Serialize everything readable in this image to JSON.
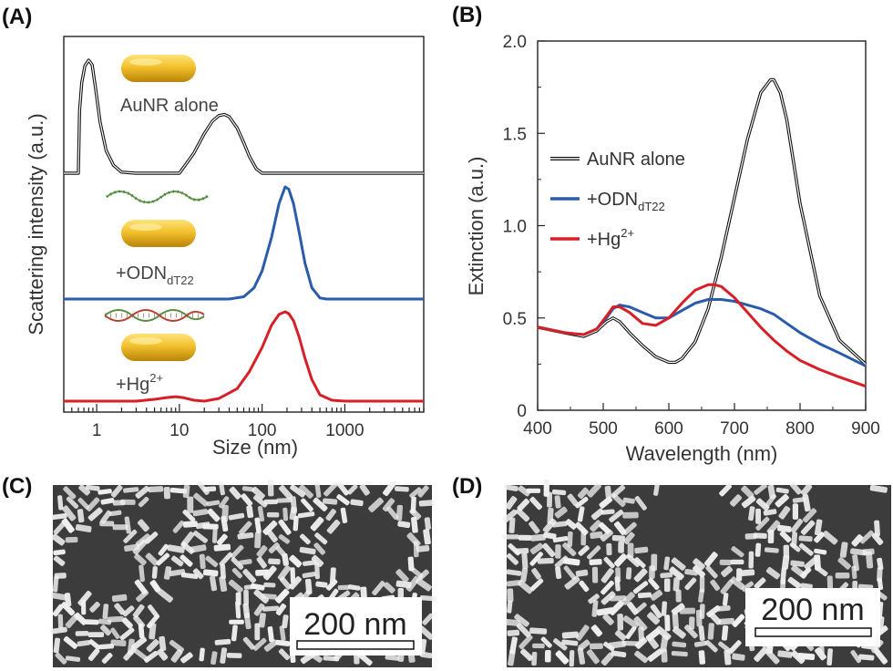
{
  "panels": {
    "a": {
      "label": "(A)"
    },
    "b": {
      "label": "(B)"
    },
    "c": {
      "label": "(C)",
      "scale_bar": "200 nm"
    },
    "d": {
      "label": "(D)",
      "scale_bar": "200 nm"
    }
  },
  "colors": {
    "alone": "#111111",
    "odn": "#2a5cab",
    "hg": "#d61f26",
    "rod": "#e8b31a",
    "tem_bg": "#3c3c3c",
    "tem_rod": "#f2f2f2"
  },
  "chart_data": [
    {
      "type": "line",
      "panel": "A",
      "xlabel": "Size (nm)",
      "ylabel": "Scattering intensity (a.u.)",
      "xscale": "log",
      "xlim": [
        0.4,
        9000
      ],
      "xticks": [
        "1",
        "10",
        "100",
        "1000"
      ],
      "xtick_values": [
        1,
        10,
        100,
        1000
      ],
      "y_tick_labels": false,
      "annotations": {
        "alone": "AuNR alone",
        "odn": "+ODN",
        "odn_sub": "dT22",
        "hg": "+Hg",
        "hg_sup": "2+"
      },
      "series": [
        {
          "key": "alone",
          "color": "#111111",
          "x": [
            0.4,
            0.55,
            0.6,
            0.62,
            0.66,
            0.72,
            0.8,
            0.88,
            0.97,
            1.1,
            1.3,
            1.6,
            2,
            3,
            5,
            10,
            15,
            20,
            25,
            30,
            35,
            40,
            50,
            60,
            70,
            85,
            100,
            9000
          ],
          "y": [
            0.0,
            0.0,
            0.0,
            0.55,
            0.8,
            0.95,
            1.0,
            0.96,
            0.75,
            0.45,
            0.2,
            0.07,
            0.01,
            0.0,
            0.0,
            0.0,
            0.18,
            0.35,
            0.46,
            0.51,
            0.52,
            0.5,
            0.4,
            0.27,
            0.15,
            0.04,
            0.0,
            0.0
          ]
        },
        {
          "key": "odn",
          "color": "#2a5cab",
          "x": [
            0.4,
            40,
            60,
            80,
            100,
            130,
            160,
            190,
            210,
            240,
            280,
            330,
            400,
            500,
            600,
            9000
          ],
          "y": [
            0.0,
            0.0,
            0.02,
            0.1,
            0.25,
            0.55,
            0.85,
            1.0,
            0.98,
            0.85,
            0.6,
            0.32,
            0.1,
            0.01,
            0.0,
            0.0
          ]
        },
        {
          "key": "hg",
          "color": "#d61f26",
          "x": [
            0.4,
            3,
            5,
            7,
            9,
            11,
            15,
            20,
            30,
            50,
            70,
            100,
            130,
            160,
            190,
            210,
            240,
            280,
            330,
            400,
            500,
            700,
            1000,
            9000
          ],
          "y": [
            0.0,
            0.0,
            0.02,
            0.04,
            0.05,
            0.04,
            0.01,
            0.0,
            0.03,
            0.14,
            0.33,
            0.6,
            0.85,
            0.97,
            1.0,
            0.98,
            0.9,
            0.72,
            0.48,
            0.24,
            0.07,
            0.01,
            0.0,
            0.0
          ]
        }
      ]
    },
    {
      "type": "line",
      "panel": "B",
      "xlabel": "Wavelength (nm)",
      "ylabel": "Extinction (a.u.)",
      "xlim": [
        400,
        900
      ],
      "ylim": [
        0,
        2.0
      ],
      "xticks": [
        400,
        500,
        600,
        700,
        800,
        900
      ],
      "yticks": [
        0,
        0.5,
        1.0,
        1.5,
        2.0
      ],
      "ytick_labels": [
        "0",
        "0.5",
        "1.0",
        "1.5",
        "2.0"
      ],
      "grid": false,
      "legend_position": "left",
      "legend": {
        "alone": "AuNR alone",
        "odn": "+ODN",
        "odn_sub": "dT22",
        "hg": "+Hg",
        "hg_sup": "2+"
      },
      "series": [
        {
          "key": "alone",
          "color": "#111111",
          "x": [
            400,
            440,
            470,
            490,
            505,
            515,
            525,
            540,
            560,
            580,
            600,
            610,
            620,
            640,
            660,
            680,
            700,
            720,
            740,
            755,
            760,
            770,
            780,
            800,
            830,
            860,
            900
          ],
          "y": [
            0.45,
            0.42,
            0.4,
            0.43,
            0.48,
            0.5,
            0.48,
            0.42,
            0.35,
            0.29,
            0.26,
            0.26,
            0.28,
            0.37,
            0.55,
            0.83,
            1.15,
            1.47,
            1.72,
            1.79,
            1.79,
            1.72,
            1.57,
            1.12,
            0.62,
            0.38,
            0.25
          ]
        },
        {
          "key": "odn",
          "color": "#2a5cab",
          "x": [
            400,
            440,
            470,
            490,
            505,
            515,
            525,
            540,
            560,
            580,
            600,
            620,
            640,
            660,
            680,
            700,
            720,
            740,
            760,
            780,
            800,
            830,
            860,
            900
          ],
          "y": [
            0.45,
            0.42,
            0.41,
            0.44,
            0.5,
            0.55,
            0.57,
            0.56,
            0.53,
            0.5,
            0.5,
            0.54,
            0.58,
            0.6,
            0.6,
            0.59,
            0.57,
            0.55,
            0.52,
            0.47,
            0.42,
            0.36,
            0.31,
            0.24
          ]
        },
        {
          "key": "hg",
          "color": "#d61f26",
          "x": [
            400,
            440,
            470,
            490,
            505,
            515,
            525,
            540,
            560,
            580,
            600,
            620,
            640,
            660,
            670,
            680,
            700,
            720,
            740,
            760,
            780,
            800,
            830,
            860,
            900
          ],
          "y": [
            0.45,
            0.42,
            0.41,
            0.44,
            0.51,
            0.56,
            0.56,
            0.53,
            0.47,
            0.46,
            0.5,
            0.58,
            0.65,
            0.68,
            0.68,
            0.67,
            0.61,
            0.53,
            0.45,
            0.38,
            0.32,
            0.27,
            0.22,
            0.18,
            0.13
          ]
        }
      ]
    }
  ]
}
